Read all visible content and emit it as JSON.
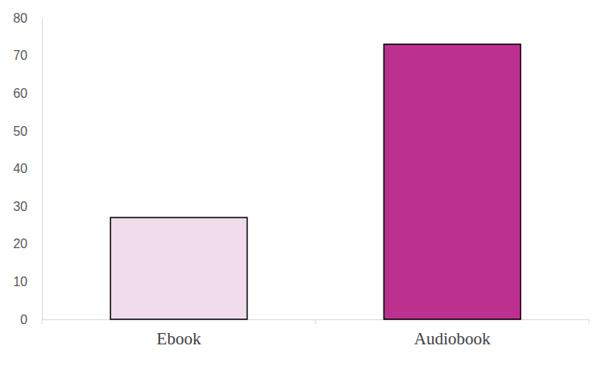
{
  "chart_data": {
    "type": "bar",
    "categories": [
      "Ebook",
      "Audiobook"
    ],
    "values": [
      27,
      73
    ],
    "colors": [
      "#f0dcea",
      "#bc3090"
    ],
    "ylim": [
      0,
      80
    ],
    "yticks": [
      0,
      10,
      20,
      30,
      40,
      50,
      60,
      70,
      80
    ],
    "grid": false
  }
}
